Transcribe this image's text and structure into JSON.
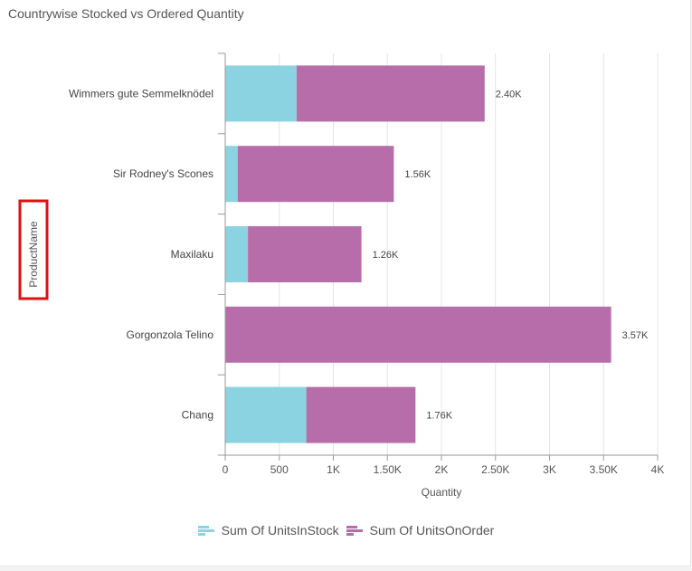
{
  "title": "Countrywise Stocked vs Ordered Quantity",
  "chart_data": {
    "type": "bar",
    "orientation": "horizontal",
    "stacked": true,
    "categories": [
      "Wimmers gute Semmelknödel",
      "Sir Rodney's Scones",
      "Maxilaku",
      "Gorgonzola Telino",
      "Chang"
    ],
    "series": [
      {
        "name": "Sum Of UnitsInStock",
        "color": "#8bd3e0",
        "values": [
          660,
          115,
          210,
          0,
          750
        ]
      },
      {
        "name": "Sum Of UnitsOnOrder",
        "color": "#b86dab",
        "values": [
          1740,
          1445,
          1050,
          3570,
          1010
        ]
      }
    ],
    "totals_labels": [
      "2.40K",
      "1.56K",
      "1.26K",
      "3.57K",
      "1.76K"
    ],
    "xlabel": "Quantity",
    "ylabel": "ProductName",
    "xlim": [
      0,
      4000
    ],
    "xticks": [
      0,
      500,
      1000,
      1500,
      2000,
      2500,
      3000,
      3500,
      4000
    ],
    "xtick_labels": [
      "0",
      "500",
      "1K",
      "1.50K",
      "2K",
      "2.50K",
      "3K",
      "3.50K",
      "4K"
    ],
    "grid": true,
    "legend_position": "bottom"
  }
}
